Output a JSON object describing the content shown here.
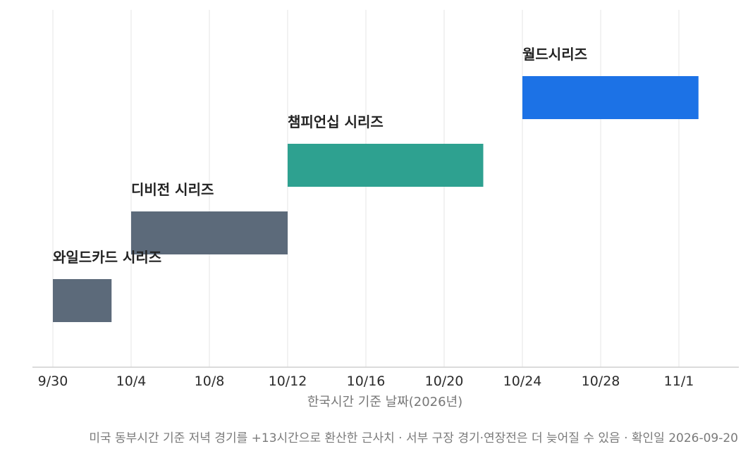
{
  "chart_data": {
    "type": "bar",
    "orientation": "horizontal-timeline",
    "xlabel": "한국시간 기준 날짜(2026년)",
    "ylabel": "",
    "x_tick_labels": [
      "9/30",
      "10/4",
      "10/8",
      "10/12",
      "10/16",
      "10/20",
      "10/24",
      "10/28",
      "11/1"
    ],
    "x_ticks": [
      "2026-09-30",
      "2026-10-04",
      "2026-10-08",
      "2026-10-12",
      "2026-10-16",
      "2026-10-20",
      "2026-10-24",
      "2026-10-28",
      "2026-11-01"
    ],
    "xlim": [
      "2026-09-29",
      "2026-11-03"
    ],
    "grid": "vertical",
    "series": [
      {
        "name": "와일드카드 시리즈",
        "start": "2026-09-30",
        "end": "2026-10-03",
        "color": "#5c6a7a"
      },
      {
        "name": "디비전 시리즈",
        "start": "2026-10-04",
        "end": "2026-10-12",
        "color": "#5c6a7a"
      },
      {
        "name": "챔피언십 시리즈",
        "start": "2026-10-12",
        "end": "2026-10-22",
        "color": "#2ea190"
      },
      {
        "name": "월드시리즈",
        "start": "2026-10-24",
        "end": "2026-11-02",
        "color": "#1c72e6"
      }
    ]
  },
  "footnote": "미국 동부시간 기준 저녁 경기를 +13시간으로 환산한 근사치 · 서부 구장 경기·연장전은 더 늦어질 수 있음 · 확인일 2026-09-20"
}
